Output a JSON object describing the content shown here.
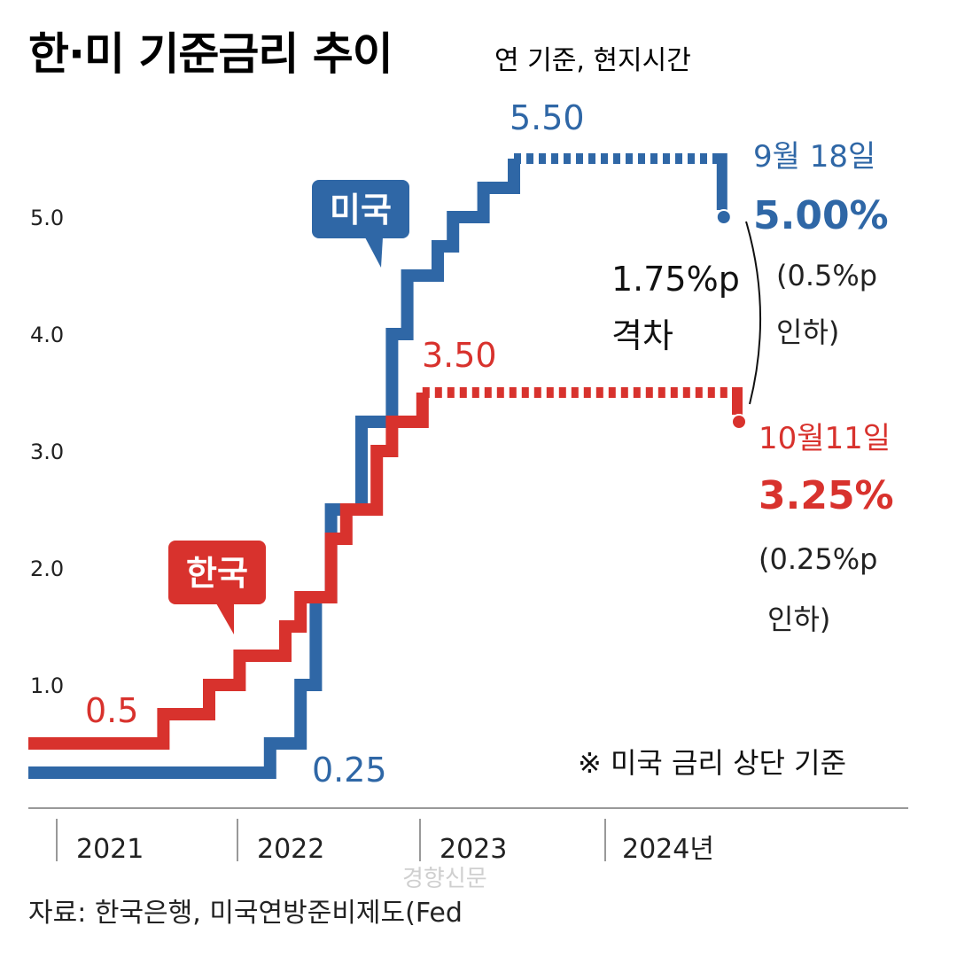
{
  "title": "한·미 기준금리 추이",
  "subtitle": "연 기준, 현지시간",
  "footnote": "※ 미국 금리 상단 기준",
  "source": "자료: 한국은행, 미국연방준비제도(Fed",
  "watermark": "경향신문",
  "colors": {
    "us": "#2f67a6",
    "kr": "#d8322d",
    "axis": "#999999"
  },
  "chart_data": {
    "type": "line",
    "title": "한·미 기준금리 추이",
    "y_ticks": [
      "1.0",
      "2.0",
      "3.0",
      "4.0",
      "5.0"
    ],
    "x_labels": [
      "2021",
      "2022",
      "2023",
      "2024년"
    ],
    "ylim": [
      0,
      6
    ],
    "series": [
      {
        "name": "미국",
        "color": "#2f67a6",
        "steps": [
          [
            "2021-01",
            0.25
          ],
          [
            "2022-03",
            0.5
          ],
          [
            "2022-05",
            1.0
          ],
          [
            "2022-06",
            1.75
          ],
          [
            "2022-07",
            2.5
          ],
          [
            "2022-09",
            3.25
          ],
          [
            "2022-11",
            4.0
          ],
          [
            "2022-12",
            4.5
          ],
          [
            "2023-02",
            4.75
          ],
          [
            "2023-03",
            5.0
          ],
          [
            "2023-05",
            5.25
          ],
          [
            "2023-07",
            5.5
          ],
          [
            "2024-09",
            5.0
          ]
        ],
        "hold": {
          "from": "2023-07",
          "to": "2024-09",
          "value": 5.5
        }
      },
      {
        "name": "한국",
        "color": "#d8322d",
        "steps": [
          [
            "2021-01",
            0.5
          ],
          [
            "2021-08",
            0.75
          ],
          [
            "2021-11",
            1.0
          ],
          [
            "2022-01",
            1.25
          ],
          [
            "2022-04",
            1.5
          ],
          [
            "2022-05",
            1.75
          ],
          [
            "2022-07",
            2.25
          ],
          [
            "2022-08",
            2.5
          ],
          [
            "2022-10",
            3.0
          ],
          [
            "2022-11",
            3.25
          ],
          [
            "2023-01",
            3.5
          ],
          [
            "2024-10",
            3.25
          ]
        ],
        "hold": {
          "from": "2023-01",
          "to": "2024-10",
          "value": 3.5
        }
      }
    ],
    "annotations": {
      "us_label": "미국",
      "kr_label": "한국",
      "us_start": "0.25",
      "kr_start": "0.5",
      "us_peak": "5.50",
      "kr_peak": "3.50",
      "us_cut_date": "9월 18일",
      "us_cut_value": "5.00%",
      "us_cut_note_1": "(0.5%p",
      "us_cut_note_2": "인하)",
      "kr_cut_date": "10월11일",
      "kr_cut_value": "3.25%",
      "kr_cut_note_1": "(0.25%p",
      "kr_cut_note_2": "인하)",
      "gap_1": "1.75%p",
      "gap_2": "격차"
    }
  }
}
